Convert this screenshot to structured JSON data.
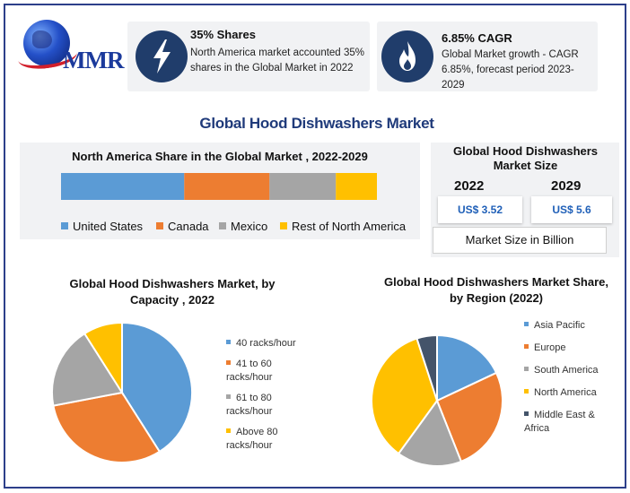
{
  "logo": {
    "text": "MMR"
  },
  "cards": [
    {
      "title": "35% Shares",
      "text": "North America market accounted 35% shares in the Global Market in 2022",
      "icon": "lightning-icon"
    },
    {
      "title": "6.85% CAGR",
      "text": "Global Market growth - CAGR 6.85%, forecast period 2023-2029",
      "icon": "flame-icon"
    }
  ],
  "main_title": "Global Hood Dishwashers Market",
  "market_size": {
    "title": "Global Hood Dishwashers Market Size",
    "year1": "2022",
    "value1": "US$ 3.52",
    "year2": "2029",
    "value2": "US$ 5.6",
    "unit_label": "Market Size in Billion"
  },
  "colors": {
    "blue": "#5b9bd5",
    "orange": "#ed7d31",
    "gray": "#a5a5a5",
    "yellow": "#ffc000",
    "navy": "#44546a",
    "accent": "#1f3a7a"
  },
  "chart_data": [
    {
      "type": "bar",
      "orientation": "horizontal-stacked",
      "title": "North America Share in the Global Market , 2022-2029",
      "series": [
        {
          "name": "United States",
          "values": [
            39
          ]
        },
        {
          "name": "Canada",
          "values": [
            27
          ]
        },
        {
          "name": "Mexico",
          "values": [
            21
          ]
        },
        {
          "name": "Rest of North America",
          "values": [
            13
          ]
        }
      ],
      "legend": "bottom"
    },
    {
      "type": "pie",
      "title": "Global Hood Dishwashers Market, by Capacity , 2022",
      "labels": [
        "40 racks/hour",
        "41 to 60 racks/hour",
        "61 to 80 racks/hour",
        "Above 80 racks/hour"
      ],
      "values": [
        41,
        31,
        19,
        9
      ],
      "legend": "right"
    },
    {
      "type": "pie",
      "title": "Global Hood Dishwashers Market Share, by Region (2022)",
      "labels": [
        "Asia Pacific",
        "Europe",
        "South America",
        "North America",
        "Middle East & Africa"
      ],
      "values": [
        18,
        26,
        16,
        35,
        5
      ],
      "legend": "right"
    }
  ]
}
